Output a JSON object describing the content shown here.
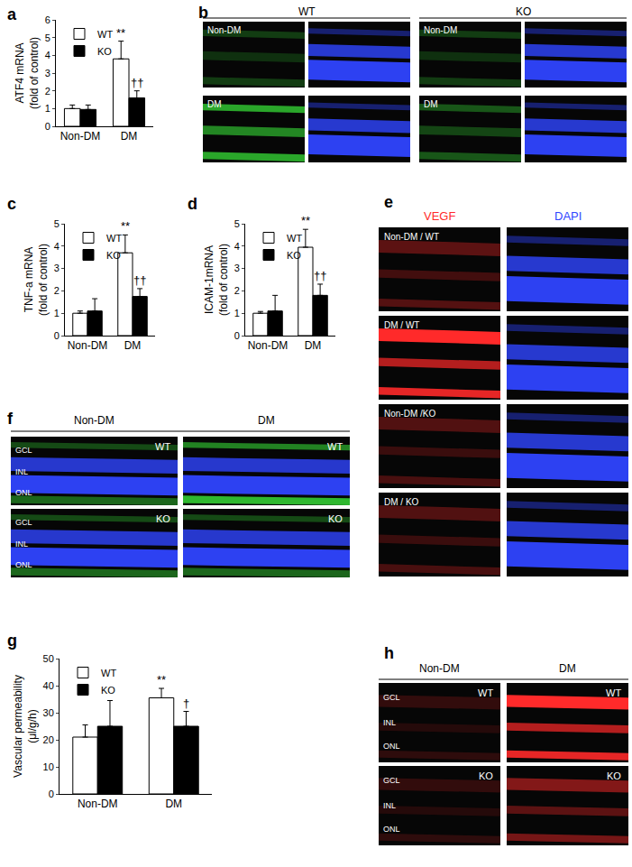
{
  "chart_data": [
    {
      "type": "bar",
      "title": "a",
      "y_label": "ATF4 mRNA\n(fold of control)",
      "categories": [
        "Non-DM",
        "DM"
      ],
      "series": [
        {
          "name": "WT",
          "color": "#ffffff",
          "values": [
            1.0,
            3.8
          ],
          "errors": [
            0.2,
            1.0
          ]
        },
        {
          "name": "KO",
          "color": "#000000",
          "values": [
            0.95,
            1.6
          ],
          "errors": [
            0.25,
            0.4
          ]
        }
      ],
      "ylim": [
        0,
        6
      ],
      "yticks": [
        0,
        1,
        2,
        3,
        4,
        5,
        6
      ],
      "grid": false,
      "legend": "upper left",
      "annotations": [
        {
          "text": "**",
          "category": "DM",
          "series": "WT"
        },
        {
          "text": "††",
          "category": "DM",
          "series": "KO"
        }
      ]
    },
    {
      "type": "bar",
      "title": "c",
      "y_label": "TNF-a mRNA\n(fold of control)",
      "categories": [
        "Non-DM",
        "DM"
      ],
      "series": [
        {
          "name": "WT",
          "color": "#ffffff",
          "values": [
            1.0,
            3.7
          ],
          "errors": [
            0.1,
            0.8
          ]
        },
        {
          "name": "KO",
          "color": "#000000",
          "values": [
            1.1,
            1.75
          ],
          "errors": [
            0.55,
            0.35
          ]
        }
      ],
      "ylim": [
        0,
        5
      ],
      "yticks": [
        0,
        1,
        2,
        3,
        4,
        5
      ],
      "grid": false,
      "legend": "upper left",
      "annotations": [
        {
          "text": "**",
          "category": "DM",
          "series": "WT"
        },
        {
          "text": "††",
          "category": "DM",
          "series": "KO"
        }
      ]
    },
    {
      "type": "bar",
      "title": "d",
      "y_label": "ICAM-1mRNA\n(fold of control)",
      "categories": [
        "Non-DM",
        "DM"
      ],
      "series": [
        {
          "name": "WT",
          "color": "#ffffff",
          "values": [
            1.0,
            3.95
          ],
          "errors": [
            0.08,
            0.8
          ]
        },
        {
          "name": "KO",
          "color": "#000000",
          "values": [
            1.1,
            1.8
          ],
          "errors": [
            0.7,
            0.5
          ]
        }
      ],
      "ylim": [
        0,
        5
      ],
      "yticks": [
        0,
        1,
        2,
        3,
        4,
        5
      ],
      "grid": false,
      "legend": "upper left",
      "annotations": [
        {
          "text": "**",
          "category": "DM",
          "series": "WT"
        },
        {
          "text": "††",
          "category": "DM",
          "series": "KO"
        }
      ]
    },
    {
      "type": "bar",
      "title": "g",
      "y_label": "Vascular permeability\n(μl/g/h)",
      "categories": [
        "Non-DM",
        "DM"
      ],
      "series": [
        {
          "name": "WT",
          "color": "#ffffff",
          "values": [
            21,
            35.5
          ],
          "errors": [
            4.5,
            3.5
          ]
        },
        {
          "name": "KO",
          "color": "#000000",
          "values": [
            25,
            25
          ],
          "errors": [
            9.5,
            5.5
          ]
        }
      ],
      "ylim": [
        0,
        50
      ],
      "yticks": [
        0,
        10,
        20,
        30,
        40,
        50
      ],
      "grid": false,
      "legend": "upper left",
      "annotations": [
        {
          "text": "**",
          "category": "DM",
          "series": "WT"
        },
        {
          "text": "†",
          "category": "DM",
          "series": "KO"
        }
      ]
    }
  ],
  "image_panels": [
    {
      "title": "b",
      "column_labels": [
        "WT",
        "KO"
      ],
      "row_labels": [
        "Non-DM",
        "DM"
      ]
    },
    {
      "title": "e",
      "column_labels": [
        "VEGF",
        "DAPI"
      ],
      "row_labels": [
        "Non-DM / WT",
        "DM / WT",
        "Non-DM /KO",
        "DM / KO"
      ]
    },
    {
      "title": "f",
      "column_labels": [
        "Non-DM",
        "DM"
      ],
      "row_labels": [
        "WT",
        "KO"
      ],
      "layer_labels": [
        "GCL",
        "INL",
        "ONL"
      ]
    },
    {
      "title": "h",
      "column_labels": [
        "Non-DM",
        "DM"
      ],
      "row_labels": [
        "WT",
        "KO"
      ],
      "layer_labels": [
        "GCL",
        "INL",
        "ONL"
      ]
    }
  ]
}
